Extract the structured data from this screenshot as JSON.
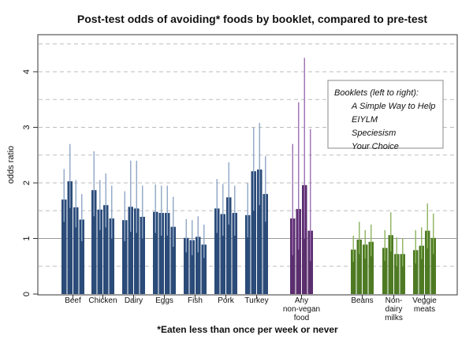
{
  "chart_data": {
    "type": "bar",
    "title": "Post-test odds of avoiding* foods by booklet, compared to pre-test",
    "xlabel": "*Eaten less than once per week or never",
    "ylabel": "odds ratio",
    "ylim": [
      0,
      4.5
    ],
    "yticks": [
      0,
      1,
      2,
      3,
      4
    ],
    "grid": true,
    "legend": {
      "placement": "right",
      "title": "Booklets (left to right):",
      "items": [
        "A Simple Way to Help",
        "EIYLM",
        "Speciesism",
        "Your Choice"
      ]
    },
    "colors": {
      "animal": "#2b4b78",
      "any": "#5b2e6e",
      "plant": "#4e7a24",
      "animal_ci": "#8fa6c6",
      "any_ci": "#9b6fb3",
      "plant_ci": "#8db35e",
      "grid": "#bdbdbd",
      "baseline": "#9a9a9a"
    },
    "categories": [
      {
        "label": [
          "Beef"
        ],
        "group": "animal",
        "values": [
          1.7,
          2.03,
          1.56,
          1.34
        ],
        "ci_low": [
          1.3,
          1.55,
          1.2,
          0.95
        ],
        "ci_high": [
          2.25,
          2.7,
          2.05,
          1.8
        ]
      },
      {
        "label": [
          "Chicken"
        ],
        "group": "animal",
        "values": [
          1.87,
          1.52,
          1.6,
          1.36
        ],
        "ci_low": [
          1.4,
          1.15,
          1.2,
          1.0
        ],
        "ci_high": [
          2.57,
          2.05,
          2.17,
          1.95
        ]
      },
      {
        "label": [
          "Dairy"
        ],
        "group": "animal",
        "values": [
          1.33,
          1.57,
          1.54,
          1.39
        ],
        "ci_low": [
          0.95,
          1.12,
          1.1,
          1.0
        ],
        "ci_high": [
          1.85,
          2.4,
          2.4,
          1.95
        ]
      },
      {
        "label": [
          "Eggs"
        ],
        "group": "animal",
        "values": [
          1.48,
          1.46,
          1.46,
          1.21
        ],
        "ci_low": [
          1.1,
          1.05,
          1.05,
          0.85
        ],
        "ci_high": [
          1.97,
          1.95,
          1.95,
          1.75
        ]
      },
      {
        "label": [
          "Fish"
        ],
        "group": "animal",
        "values": [
          1.01,
          0.97,
          1.03,
          0.89
        ],
        "ci_low": [
          0.75,
          0.7,
          0.75,
          0.65
        ],
        "ci_high": [
          1.35,
          1.33,
          1.4,
          1.25
        ]
      },
      {
        "label": [
          "Pork"
        ],
        "group": "animal",
        "values": [
          1.54,
          1.44,
          1.74,
          1.46
        ],
        "ci_low": [
          1.1,
          1.05,
          1.25,
          1.05
        ],
        "ci_high": [
          2.07,
          1.98,
          2.37,
          1.95
        ]
      },
      {
        "label": [
          "Turkey"
        ],
        "group": "animal",
        "values": [
          1.42,
          2.21,
          2.24,
          1.8
        ],
        "ci_low": [
          1.02,
          1.5,
          1.6,
          1.3
        ],
        "ci_high": [
          2.0,
          3.0,
          3.08,
          2.48
        ]
      },
      {
        "label": [
          "Any",
          "non-vegan",
          "food"
        ],
        "group": "any",
        "values": [
          1.36,
          1.53,
          1.96,
          1.14
        ],
        "ci_low": [
          0.7,
          0.8,
          1.0,
          0.6
        ],
        "ci_high": [
          2.7,
          3.45,
          4.25,
          2.97
        ]
      },
      {
        "label": [
          "Beans"
        ],
        "group": "plant",
        "values": [
          0.8,
          0.98,
          0.89,
          0.94
        ],
        "ci_low": [
          0.58,
          0.72,
          0.64,
          0.68
        ],
        "ci_high": [
          1.05,
          1.3,
          1.15,
          1.25
        ]
      },
      {
        "label": [
          "Non-",
          "dairy",
          "milks"
        ],
        "group": "plant",
        "values": [
          0.83,
          1.06,
          0.72,
          0.72
        ],
        "ci_low": [
          0.6,
          0.77,
          0.5,
          0.5
        ],
        "ci_high": [
          1.15,
          1.47,
          1.02,
          1.0
        ]
      },
      {
        "label": [
          "Veggie",
          "meats"
        ],
        "group": "plant",
        "values": [
          0.79,
          0.87,
          1.14,
          1.01
        ],
        "ci_low": [
          0.55,
          0.63,
          0.82,
          0.72
        ],
        "ci_high": [
          1.15,
          1.2,
          1.63,
          1.45
        ]
      }
    ]
  }
}
